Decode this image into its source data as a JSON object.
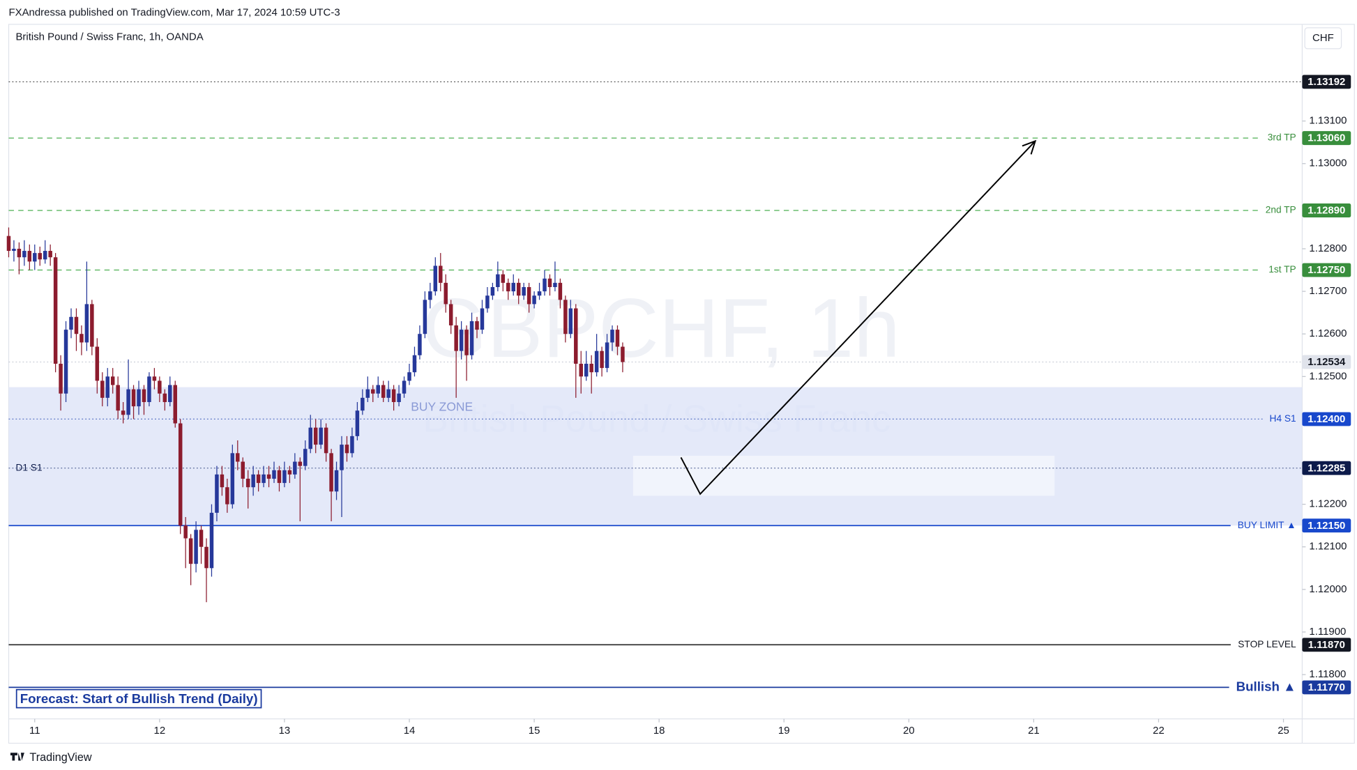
{
  "header": "FXAndressa published on TradingView.com, Mar 17, 2024 10:59 UTC-3",
  "footer": "TradingView",
  "chart_data": {
    "type": "candlestick",
    "title": "British Pound / Swiss Franc, 1h, OANDA",
    "currency": "CHF",
    "watermark": [
      "GBPCHF, 1h",
      "British Pound / Swiss Franc"
    ],
    "annotation": "Forecast: Start of Bullish Trend (Daily)",
    "up_color": "#26389a",
    "down_color": "#8c1c2e",
    "xlim": [
      -5,
      243.6
    ],
    "ylim": [
      1.11696,
      1.13327
    ],
    "xticks": [
      {
        "value": 0,
        "label": "11"
      },
      {
        "value": 24,
        "label": "12"
      },
      {
        "value": 48,
        "label": "13"
      },
      {
        "value": 72,
        "label": "14"
      },
      {
        "value": 96,
        "label": "15"
      },
      {
        "value": 120,
        "label": "18"
      },
      {
        "value": 144,
        "label": "19"
      },
      {
        "value": 168,
        "label": "20"
      },
      {
        "value": 192,
        "label": "21"
      },
      {
        "value": 216,
        "label": "22"
      },
      {
        "value": 240,
        "label": "25"
      }
    ],
    "yticks": [
      {
        "value": 1.131,
        "label": "1.13100"
      },
      {
        "value": 1.13,
        "label": "1.13000"
      },
      {
        "value": 1.128,
        "label": "1.12800"
      },
      {
        "value": 1.127,
        "label": "1.12700"
      },
      {
        "value": 1.126,
        "label": "1.12600"
      },
      {
        "value": 1.125,
        "label": "1.12500"
      },
      {
        "value": 1.122,
        "label": "1.12200"
      },
      {
        "value": 1.121,
        "label": "1.12100"
      },
      {
        "value": 1.12,
        "label": "1.12000"
      },
      {
        "value": 1.119,
        "label": "1.11900"
      },
      {
        "value": 1.118,
        "label": "1.11800"
      }
    ],
    "zone": {
      "label": "BUY ZONE",
      "bottom": 1.1215,
      "top": 1.12475,
      "color": "#dfe5f8"
    },
    "highlight": {
      "x": [
        115,
        196
      ],
      "y": [
        1.1222,
        1.12314
      ]
    },
    "drawing": {
      "x": [
        124.2,
        127.9,
        192.3
      ],
      "y": [
        1.1231,
        1.12224,
        1.13053
      ]
    },
    "levels": [
      {
        "value": 1.13192,
        "label": "1.13192",
        "color": "#131722",
        "line": "#444",
        "style": "dotted"
      },
      {
        "name": "3rd TP",
        "value": 1.1306,
        "label": "1.13060",
        "color": "#388e3c",
        "line": "#4caf50",
        "style": "dashed"
      },
      {
        "name": "2nd TP",
        "value": 1.1289,
        "label": "1.12890",
        "color": "#388e3c",
        "line": "#4caf50",
        "style": "dashed"
      },
      {
        "name": "1st TP",
        "value": 1.1275,
        "label": "1.12750",
        "color": "#388e3c",
        "line": "#4caf50",
        "style": "dashed"
      },
      {
        "value": 1.12534,
        "label": "1.12534",
        "color": "#e0e3eb",
        "line": "#c8ccd6",
        "style": "dotted"
      },
      {
        "name": "H4 S1",
        "value": 1.124,
        "label": "1.12400",
        "color": "#1848cc",
        "line": "#5a74c4",
        "style": "dotted"
      },
      {
        "name": "D1 S1",
        "value": 1.12285,
        "label": "1.12285",
        "color": "#0c1a4a",
        "line": "#5a6a9a",
        "style": "dotted",
        "name_side": "left"
      },
      {
        "name": "BUY LIMIT ▲",
        "value": 1.1215,
        "label": "1.12150",
        "color": "#1848cc",
        "line": "#1848cc",
        "style": "solid"
      },
      {
        "name": "STOP LEVEL",
        "value": 1.1187,
        "label": "1.11870",
        "color": "#131722",
        "line": "#333",
        "style": "solid"
      },
      {
        "name": "Bullish ▲",
        "value": 1.1177,
        "label": "1.11770",
        "color": "#1a3a9e",
        "line": "#1a3a9e",
        "style": "solid",
        "name_size": 15
      }
    ],
    "x": [
      -5,
      -4,
      -3,
      -2,
      -1,
      0,
      1,
      2,
      3,
      4,
      5,
      6,
      7,
      8,
      9,
      10,
      11,
      12,
      13,
      14,
      15,
      16,
      17,
      18,
      19,
      20,
      21,
      22,
      23,
      24,
      25,
      26,
      27,
      28,
      29,
      30,
      31,
      32,
      33,
      34,
      35,
      36,
      37,
      38,
      39,
      40,
      41,
      42,
      43,
      44,
      45,
      46,
      47,
      48,
      49,
      50,
      51,
      52,
      53,
      54,
      55,
      56,
      57,
      58,
      59,
      60,
      61,
      62,
      63,
      64,
      65,
      66,
      67,
      68,
      69,
      70,
      71,
      72,
      73,
      74,
      75,
      76,
      77,
      78,
      79,
      80,
      81,
      82,
      83,
      84,
      85,
      86,
      87,
      88,
      89,
      90,
      91,
      92,
      93,
      94,
      95,
      96,
      97,
      98,
      99,
      100,
      101,
      102,
      103,
      104,
      105,
      106,
      107,
      108,
      109,
      110,
      111,
      112,
      113
    ],
    "ohlc": [
      [
        1.1283,
        1.1285,
        1.1278,
        1.12795
      ],
      [
        1.12795,
        1.1282,
        1.1277,
        1.128
      ],
      [
        1.128,
        1.12815,
        1.1274,
        1.1278
      ],
      [
        1.1278,
        1.1282,
        1.1276,
        1.12795
      ],
      [
        1.12795,
        1.1281,
        1.1275,
        1.1277
      ],
      [
        1.1277,
        1.1281,
        1.1275,
        1.1279
      ],
      [
        1.1279,
        1.12805,
        1.1276,
        1.12775
      ],
      [
        1.12775,
        1.1282,
        1.12765,
        1.12795
      ],
      [
        1.12795,
        1.1281,
        1.1276,
        1.1278
      ],
      [
        1.1278,
        1.1279,
        1.1251,
        1.1253
      ],
      [
        1.1253,
        1.1255,
        1.1242,
        1.1246
      ],
      [
        1.1246,
        1.1263,
        1.1244,
        1.1261
      ],
      [
        1.1261,
        1.1266,
        1.1259,
        1.1264
      ],
      [
        1.1264,
        1.1266,
        1.1256,
        1.126
      ],
      [
        1.126,
        1.1262,
        1.1255,
        1.1258
      ],
      [
        1.1258,
        1.1277,
        1.1256,
        1.1267
      ],
      [
        1.1267,
        1.1268,
        1.1255,
        1.1257
      ],
      [
        1.1257,
        1.1259,
        1.1246,
        1.1249
      ],
      [
        1.1249,
        1.1251,
        1.1243,
        1.1245
      ],
      [
        1.1245,
        1.1252,
        1.1243,
        1.125
      ],
      [
        1.125,
        1.1252,
        1.1246,
        1.1248
      ],
      [
        1.1248,
        1.125,
        1.124,
        1.1242
      ],
      [
        1.1242,
        1.1244,
        1.1239,
        1.1241
      ],
      [
        1.1241,
        1.1254,
        1.124,
        1.1247
      ],
      [
        1.1247,
        1.1248,
        1.124,
        1.1243
      ],
      [
        1.1243,
        1.1249,
        1.1241,
        1.1247
      ],
      [
        1.1247,
        1.1248,
        1.1241,
        1.1244
      ],
      [
        1.1244,
        1.1251,
        1.1243,
        1.125
      ],
      [
        1.125,
        1.1252,
        1.1247,
        1.1249
      ],
      [
        1.1249,
        1.125,
        1.1244,
        1.1246
      ],
      [
        1.1246,
        1.1247,
        1.1242,
        1.1244
      ],
      [
        1.1244,
        1.125,
        1.1243,
        1.1248
      ],
      [
        1.1248,
        1.1249,
        1.1238,
        1.1239
      ],
      [
        1.1239,
        1.124,
        1.1213,
        1.1215
      ],
      [
        1.1215,
        1.1217,
        1.1205,
        1.1212
      ],
      [
        1.1212,
        1.1213,
        1.1201,
        1.1206
      ],
      [
        1.1206,
        1.1216,
        1.1204,
        1.1214
      ],
      [
        1.1214,
        1.1215,
        1.1206,
        1.121
      ],
      [
        1.121,
        1.1212,
        1.1197,
        1.1205
      ],
      [
        1.1205,
        1.122,
        1.1203,
        1.1218
      ],
      [
        1.1218,
        1.1229,
        1.1216,
        1.1227
      ],
      [
        1.1227,
        1.1229,
        1.1222,
        1.1224
      ],
      [
        1.1224,
        1.1226,
        1.1218,
        1.122
      ],
      [
        1.122,
        1.1234,
        1.1219,
        1.1232
      ],
      [
        1.1232,
        1.1235,
        1.1228,
        1.123
      ],
      [
        1.123,
        1.1231,
        1.1224,
        1.1226
      ],
      [
        1.1226,
        1.1228,
        1.1219,
        1.1224
      ],
      [
        1.1224,
        1.1229,
        1.1222,
        1.1227
      ],
      [
        1.1227,
        1.1228,
        1.1223,
        1.1225
      ],
      [
        1.1225,
        1.1229,
        1.1224,
        1.1227
      ],
      [
        1.1227,
        1.1229,
        1.1224,
        1.1226
      ],
      [
        1.1226,
        1.123,
        1.1225,
        1.1228
      ],
      [
        1.1228,
        1.1229,
        1.1223,
        1.1225
      ],
      [
        1.1225,
        1.123,
        1.1224,
        1.1228
      ],
      [
        1.1228,
        1.1229,
        1.1225,
        1.1227
      ],
      [
        1.1227,
        1.1232,
        1.1226,
        1.123
      ],
      [
        1.123,
        1.1231,
        1.1216,
        1.1229
      ],
      [
        1.1229,
        1.1235,
        1.1228,
        1.1233
      ],
      [
        1.1233,
        1.1241,
        1.1232,
        1.1238
      ],
      [
        1.1238,
        1.124,
        1.1232,
        1.1234
      ],
      [
        1.1234,
        1.124,
        1.1233,
        1.1238
      ],
      [
        1.1238,
        1.1239,
        1.123,
        1.1232
      ],
      [
        1.1232,
        1.1233,
        1.1216,
        1.1223
      ],
      [
        1.1223,
        1.123,
        1.1221,
        1.1228
      ],
      [
        1.1228,
        1.1236,
        1.1217,
        1.1234
      ],
      [
        1.1234,
        1.1236,
        1.123,
        1.1232
      ],
      [
        1.1232,
        1.1238,
        1.1231,
        1.1236
      ],
      [
        1.1236,
        1.1244,
        1.1235,
        1.1242
      ],
      [
        1.1242,
        1.1247,
        1.1241,
        1.1245
      ],
      [
        1.1245,
        1.125,
        1.1244,
        1.1247
      ],
      [
        1.1247,
        1.1248,
        1.1244,
        1.1246
      ],
      [
        1.1246,
        1.125,
        1.1245,
        1.1248
      ],
      [
        1.1248,
        1.1249,
        1.1244,
        1.1245
      ],
      [
        1.1245,
        1.1249,
        1.1244,
        1.1247
      ],
      [
        1.1247,
        1.1248,
        1.1242,
        1.1244
      ],
      [
        1.1244,
        1.1248,
        1.1243,
        1.1246
      ],
      [
        1.1246,
        1.125,
        1.1245,
        1.1249
      ],
      [
        1.1249,
        1.1253,
        1.1248,
        1.1251
      ],
      [
        1.1251,
        1.1257,
        1.125,
        1.1255
      ],
      [
        1.1255,
        1.1262,
        1.1254,
        1.126
      ],
      [
        1.126,
        1.127,
        1.1259,
        1.1268
      ],
      [
        1.1268,
        1.1272,
        1.1266,
        1.127
      ],
      [
        1.127,
        1.1278,
        1.1269,
        1.1276
      ],
      [
        1.1276,
        1.1279,
        1.127,
        1.1272
      ],
      [
        1.1272,
        1.1274,
        1.1265,
        1.1267
      ],
      [
        1.1267,
        1.1268,
        1.126,
        1.1262
      ],
      [
        1.1262,
        1.1264,
        1.1245,
        1.1256
      ],
      [
        1.1256,
        1.1263,
        1.1254,
        1.1261
      ],
      [
        1.1261,
        1.1262,
        1.1249,
        1.1255
      ],
      [
        1.1255,
        1.1265,
        1.1254,
        1.1263
      ],
      [
        1.1263,
        1.1264,
        1.1259,
        1.1261
      ],
      [
        1.1261,
        1.1268,
        1.126,
        1.1266
      ],
      [
        1.1266,
        1.1271,
        1.1265,
        1.1269
      ],
      [
        1.1269,
        1.1272,
        1.1268,
        1.1271
      ],
      [
        1.1271,
        1.1277,
        1.127,
        1.1274
      ],
      [
        1.1274,
        1.1275,
        1.127,
        1.1272
      ],
      [
        1.1272,
        1.1273,
        1.1268,
        1.127
      ],
      [
        1.127,
        1.1274,
        1.1269,
        1.1272
      ],
      [
        1.1272,
        1.1273,
        1.1267,
        1.1269
      ],
      [
        1.1269,
        1.1272,
        1.1268,
        1.1271
      ],
      [
        1.1271,
        1.1272,
        1.1265,
        1.1267
      ],
      [
        1.1267,
        1.127,
        1.1266,
        1.1269
      ],
      [
        1.1269,
        1.1272,
        1.1268,
        1.127
      ],
      [
        1.127,
        1.1275,
        1.1269,
        1.1273
      ],
      [
        1.1273,
        1.1274,
        1.1269,
        1.1271
      ],
      [
        1.1271,
        1.1277,
        1.127,
        1.1272
      ],
      [
        1.1272,
        1.1273,
        1.1266,
        1.1268
      ],
      [
        1.1268,
        1.1269,
        1.1258,
        1.126
      ],
      [
        1.126,
        1.1268,
        1.1259,
        1.1266
      ],
      [
        1.1266,
        1.1267,
        1.1245,
        1.1253
      ],
      [
        1.1253,
        1.1256,
        1.1246,
        1.125
      ],
      [
        1.125,
        1.1256,
        1.1249,
        1.1253
      ],
      [
        1.1253,
        1.1255,
        1.1246,
        1.1251
      ],
      [
        1.1251,
        1.126,
        1.125,
        1.1256
      ],
      [
        1.1256,
        1.1257,
        1.125,
        1.1252
      ],
      [
        1.1252,
        1.126,
        1.1251,
        1.1258
      ],
      [
        1.1258,
        1.1262,
        1.1256,
        1.1261
      ],
      [
        1.1261,
        1.1262,
        1.1255,
        1.1257
      ],
      [
        1.1257,
        1.1258,
        1.1251,
        1.12534
      ]
    ]
  }
}
